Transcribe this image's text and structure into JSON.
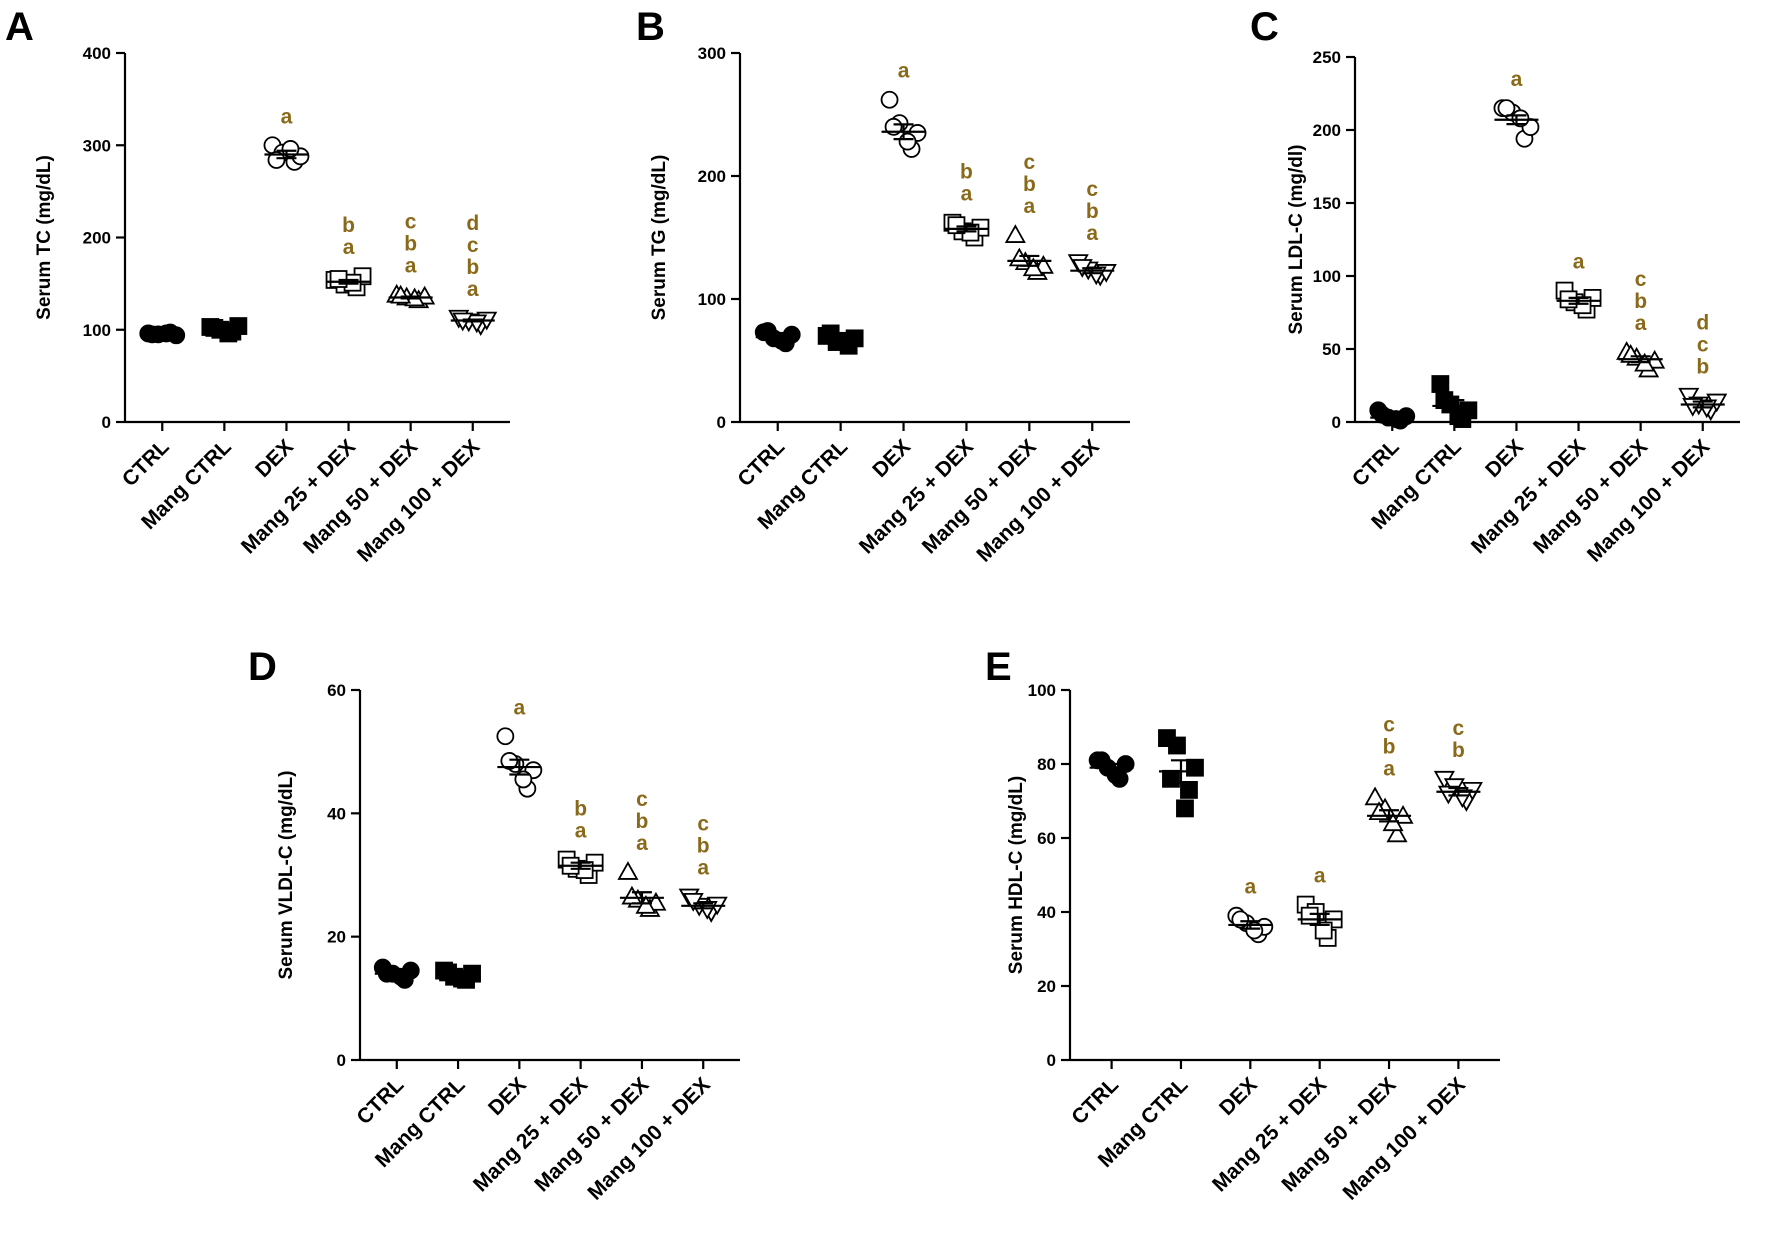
{
  "figure": {
    "sig_color": "#8a6a1a"
  },
  "chart_data": [
    {
      "type": "scatter",
      "panel": "A",
      "ylabel": "Serum TC (mg/dL)",
      "ylim": [
        0,
        400
      ],
      "yticks": [
        0,
        100,
        200,
        300,
        400
      ],
      "categories": [
        "CTRL",
        "Mang CTRL",
        "DEX",
        "Mang 25 + DEX",
        "Mang 50 + DEX",
        "Mang 100 + DEX"
      ],
      "markers": [
        "circle-filled",
        "square-filled",
        "circle-open",
        "square-open",
        "triangle-up-open",
        "triangle-down-open"
      ],
      "groups": [
        {
          "values": [
            96,
            95,
            97,
            94,
            96,
            95
          ],
          "mean": 95,
          "sem": 1
        },
        {
          "values": [
            103,
            100,
            98,
            104,
            96,
            102
          ],
          "mean": 101,
          "sem": 2
        },
        {
          "values": [
            300,
            292,
            282,
            288,
            296,
            284
          ],
          "mean": 290,
          "sem": 4
        },
        {
          "values": [
            154,
            149,
            146,
            158,
            151,
            155
          ],
          "mean": 152,
          "sem": 2
        },
        {
          "values": [
            138,
            135,
            132,
            136,
            134,
            137
          ],
          "mean": 135,
          "sem": 1
        },
        {
          "values": [
            113,
            109,
            105,
            111,
            108,
            110
          ],
          "mean": 110,
          "sem": 1
        }
      ],
      "significance": [
        "",
        "",
        "a",
        "b\na",
        "c\nb\na",
        "d\nc\nb\na"
      ]
    },
    {
      "type": "scatter",
      "panel": "B",
      "ylabel": "Serum TG (mg/dL)",
      "ylim": [
        0,
        300
      ],
      "yticks": [
        0,
        100,
        200,
        300
      ],
      "categories": [
        "CTRL",
        "Mang CTRL",
        "DEX",
        "Mang 25 + DEX",
        "Mang 50 + DEX",
        "Mang 100 + DEX"
      ],
      "markers": [
        "circle-filled",
        "square-filled",
        "circle-open",
        "square-open",
        "triangle-up-open",
        "triangle-down-open"
      ],
      "groups": [
        {
          "values": [
            73,
            68,
            64,
            71,
            66,
            74
          ],
          "mean": 69,
          "sem": 2
        },
        {
          "values": [
            70,
            65,
            62,
            68,
            66,
            72
          ],
          "mean": 67,
          "sem": 2
        },
        {
          "values": [
            262,
            243,
            222,
            235,
            228,
            240
          ],
          "mean": 236,
          "sem": 6
        },
        {
          "values": [
            162,
            155,
            150,
            158,
            154,
            160
          ],
          "mean": 157,
          "sem": 2
        },
        {
          "values": [
            152,
            130,
            122,
            127,
            125,
            133
          ],
          "mean": 131,
          "sem": 4
        },
        {
          "values": [
            130,
            124,
            119,
            122,
            120,
            126
          ],
          "mean": 123,
          "sem": 2
        }
      ],
      "significance": [
        "",
        "",
        "a",
        "b\na",
        "c\nb\na",
        "c\nb\na"
      ]
    },
    {
      "type": "scatter",
      "panel": "C",
      "ylabel": "Serum LDL-C (mg/dl)",
      "ylim": [
        0,
        250
      ],
      "yticks": [
        0,
        50,
        100,
        150,
        200,
        250
      ],
      "categories": [
        "CTRL",
        "Mang CTRL",
        "DEX",
        "Mang 25 + DEX",
        "Mang 50 + DEX",
        "Mang 100 + DEX"
      ],
      "markers": [
        "circle-filled",
        "square-filled",
        "circle-open",
        "square-open",
        "triangle-up-open",
        "triangle-down-open"
      ],
      "groups": [
        {
          "values": [
            8,
            3,
            1,
            4,
            2,
            5
          ],
          "mean": 3,
          "sem": 1
        },
        {
          "values": [
            26,
            12,
            2,
            8,
            4,
            15
          ],
          "mean": 11,
          "sem": 4
        },
        {
          "values": [
            215,
            212,
            194,
            202,
            208,
            215
          ],
          "mean": 207,
          "sem": 3
        },
        {
          "values": [
            90,
            82,
            77,
            85,
            80,
            84
          ],
          "mean": 83,
          "sem": 2
        },
        {
          "values": [
            48,
            44,
            36,
            42,
            40,
            46
          ],
          "mean": 43,
          "sem": 2
        },
        {
          "values": [
            18,
            12,
            8,
            14,
            10,
            11
          ],
          "mean": 12,
          "sem": 2
        }
      ],
      "significance": [
        "",
        "",
        "a",
        "a",
        "c\nb\na",
        "d\nc\nb"
      ]
    },
    {
      "type": "scatter",
      "panel": "D",
      "ylabel": "Serum VLDL-C (mg/dL)",
      "ylim": [
        0,
        60
      ],
      "yticks": [
        0,
        20,
        40,
        60
      ],
      "categories": [
        "CTRL",
        "Mang CTRL",
        "DEX",
        "Mang 25 + DEX",
        "Mang 50 + DEX",
        "Mang 100 + DEX"
      ],
      "markers": [
        "circle-filled",
        "square-filled",
        "circle-open",
        "square-open",
        "triangle-up-open",
        "triangle-down-open"
      ],
      "groups": [
        {
          "values": [
            15,
            14,
            13,
            14.5,
            13.5,
            14
          ],
          "mean": 14,
          "sem": 0.4
        },
        {
          "values": [
            14.5,
            13.5,
            13,
            14,
            13.2,
            14.2
          ],
          "mean": 13.8,
          "sem": 0.3
        },
        {
          "values": [
            52.5,
            48,
            44,
            47,
            45.5,
            48.5
          ],
          "mean": 47.5,
          "sem": 1.2
        },
        {
          "values": [
            32.5,
            31,
            30,
            32,
            30.8,
            31.5
          ],
          "mean": 31.5,
          "sem": 0.5
        },
        {
          "values": [
            30.5,
            26,
            24.5,
            25.5,
            25,
            26.5
          ],
          "mean": 26.3,
          "sem": 0.9
        },
        {
          "values": [
            26.5,
            25,
            24,
            25.2,
            24.5,
            25.8
          ],
          "mean": 25,
          "sem": 0.4
        }
      ],
      "significance": [
        "",
        "",
        "a",
        "b\na",
        "c\nb\na",
        "c\nb\na"
      ]
    },
    {
      "type": "scatter",
      "panel": "E",
      "ylabel": "Serum HDL-C (mg/dL)",
      "ylim": [
        0,
        100
      ],
      "yticks": [
        0,
        20,
        40,
        60,
        80,
        100
      ],
      "categories": [
        "CTRL",
        "Mang CTRL",
        "DEX",
        "Mang 25 + DEX",
        "Mang 50 + DEX",
        "Mang 100 + DEX"
      ],
      "markers": [
        "circle-filled",
        "square-filled",
        "circle-open",
        "square-open",
        "triangle-up-open",
        "triangle-down-open"
      ],
      "groups": [
        {
          "values": [
            81,
            79,
            76,
            80,
            77,
            81
          ],
          "mean": 79,
          "sem": 1
        },
        {
          "values": [
            87,
            85,
            73,
            79,
            68,
            76
          ],
          "mean": 78,
          "sem": 3
        },
        {
          "values": [
            39,
            37,
            34,
            36,
            35,
            38
          ],
          "mean": 36.5,
          "sem": 1
        },
        {
          "values": [
            42,
            40,
            33,
            38,
            35,
            39
          ],
          "mean": 38,
          "sem": 1.5
        },
        {
          "values": [
            71,
            68,
            61,
            66,
            64,
            67
          ],
          "mean": 66,
          "sem": 1.5
        },
        {
          "values": [
            76,
            74,
            70,
            73,
            71,
            72
          ],
          "mean": 72.5,
          "sem": 1
        }
      ],
      "significance": [
        "",
        "",
        "a",
        "a",
        "c\nb\na",
        "c\nb"
      ]
    }
  ]
}
